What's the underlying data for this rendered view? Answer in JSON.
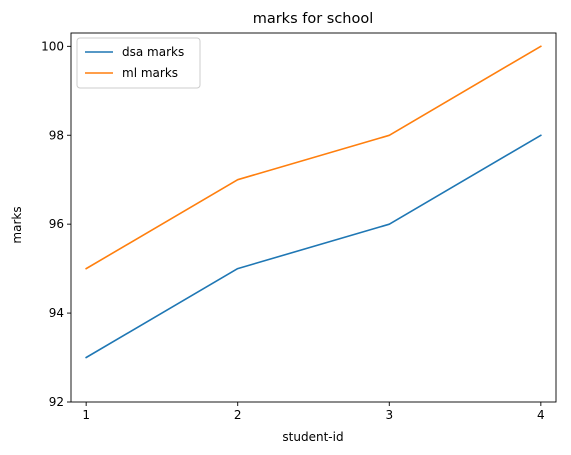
{
  "chart_data": {
    "type": "line",
    "title": "marks for school",
    "xlabel": "student-id",
    "ylabel": "marks",
    "x": [
      1,
      2,
      3,
      4
    ],
    "xticks": [
      "1",
      "2",
      "3",
      "4"
    ],
    "yticks": [
      "92",
      "94",
      "96",
      "98",
      "100"
    ],
    "xlim": [
      0.9,
      4.1
    ],
    "ylim": [
      92,
      100.3
    ],
    "grid": false,
    "legend_position": "upper-left",
    "series": [
      {
        "name": "dsa marks",
        "values": [
          93,
          95,
          96,
          98
        ],
        "color": "#1f77b4"
      },
      {
        "name": "ml marks",
        "values": [
          95,
          97,
          98,
          100
        ],
        "color": "#ff7f0e"
      }
    ]
  }
}
